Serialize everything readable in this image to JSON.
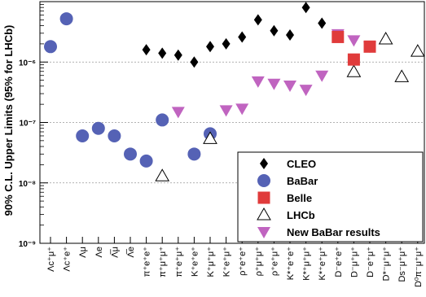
{
  "chart_data": {
    "type": "scatter",
    "title": "",
    "ylabel": "90% C.L. Upper Limits (95% for LHCb)",
    "xlabel": "",
    "y_scale": "log",
    "ylim": [
      1e-09,
      1e-05
    ],
    "y_ticks": [
      {
        "value": 1e-09,
        "label": "10⁻⁹"
      },
      {
        "value": 1e-08,
        "label": "10⁻⁸"
      },
      {
        "value": 1e-07,
        "label": "10⁻⁷"
      },
      {
        "value": 1e-06,
        "label": "10⁻⁶"
      }
    ],
    "grid": "dashed horizontal at decades",
    "legend_position": "bottom-right",
    "categories": [
      "Λc⁺μ⁺",
      "Λc⁺e⁺",
      "Λμ",
      "Λe",
      "Λ̅μ",
      "Λ̅e",
      "π⁺e⁺e⁺",
      "π⁺μ⁺μ⁺",
      "π⁺e⁺μ⁺",
      "K⁺e⁺e⁺",
      "K⁺μ⁺μ⁺",
      "K⁺e⁺μ⁺",
      "ρ⁺e⁺e⁺",
      "ρ⁺μ⁺μ⁺",
      "ρ⁺e⁺μ⁺",
      "K*⁺e⁺e⁺",
      "K*⁺μ⁺μ⁺",
      "K*⁺e⁺μ⁺",
      "D⁻e⁺e⁺",
      "D⁻μ⁺μ⁺",
      "D⁻e⁺μ⁺",
      "D*⁻μ⁺μ⁺",
      "Ds⁻μ⁺μ⁺",
      "D⁰π⁻μ⁺μ⁺"
    ],
    "series": [
      {
        "name": "CLEO",
        "marker": "diamond",
        "color": "#000000",
        "points": [
          {
            "category": 6,
            "value": 1.6e-06
          },
          {
            "category": 7,
            "value": 1.4e-06
          },
          {
            "category": 8,
            "value": 1.3e-06
          },
          {
            "category": 9,
            "value": 1e-06
          },
          {
            "category": 10,
            "value": 1.8e-06
          },
          {
            "category": 11,
            "value": 2e-06
          },
          {
            "category": 12,
            "value": 2.6e-06
          },
          {
            "category": 13,
            "value": 5e-06
          },
          {
            "category": 14,
            "value": 3.3e-06
          },
          {
            "category": 15,
            "value": 2.8e-06
          },
          {
            "category": 16,
            "value": 8e-06
          },
          {
            "category": 17,
            "value": 4.4e-06
          }
        ]
      },
      {
        "name": "BaBar",
        "marker": "circle",
        "color": "#5562b5",
        "points": [
          {
            "category": 0,
            "value": 1.8e-06
          },
          {
            "category": 1,
            "value": 5.2e-06
          },
          {
            "category": 2,
            "value": 6e-08
          },
          {
            "category": 3,
            "value": 8e-08
          },
          {
            "category": 4,
            "value": 6e-08
          },
          {
            "category": 5,
            "value": 3e-08
          },
          {
            "category": 6,
            "value": 2.3e-08
          },
          {
            "category": 7,
            "value": 1.1e-07
          },
          {
            "category": 9,
            "value": 3e-08
          },
          {
            "category": 10,
            "value": 6.5e-08
          }
        ]
      },
      {
        "name": "Belle",
        "marker": "square",
        "color": "#e03b3b",
        "points": [
          {
            "category": 18,
            "value": 2.6e-06
          },
          {
            "category": 19,
            "value": 1.1e-06
          },
          {
            "category": 20,
            "value": 1.8e-06
          }
        ]
      },
      {
        "name": "LHCb",
        "marker": "open-triangle-up",
        "color": "#000000",
        "points": [
          {
            "category": 7,
            "value": 1.3e-08
          },
          {
            "category": 10,
            "value": 5.4e-08
          },
          {
            "category": 19,
            "value": 6.9e-07
          },
          {
            "category": 21,
            "value": 2.4e-06
          },
          {
            "category": 22,
            "value": 5.7e-07
          },
          {
            "category": 23,
            "value": 1.5e-06
          }
        ]
      },
      {
        "name": "New BaBar results",
        "marker": "triangle-down",
        "color": "#c064c0",
        "points": [
          {
            "category": 8,
            "value": 1.5e-07
          },
          {
            "category": 11,
            "value": 1.6e-07
          },
          {
            "category": 12,
            "value": 1.7e-07
          },
          {
            "category": 13,
            "value": 4.8e-07
          },
          {
            "category": 14,
            "value": 4.4e-07
          },
          {
            "category": 15,
            "value": 4.1e-07
          },
          {
            "category": 16,
            "value": 3.5e-07
          },
          {
            "category": 17,
            "value": 6e-07
          },
          {
            "category": 18,
            "value": 2.9e-06
          },
          {
            "category": 19,
            "value": 2.3e-06
          },
          {
            "category": 20,
            "value": 1.8e-06
          }
        ]
      }
    ]
  }
}
